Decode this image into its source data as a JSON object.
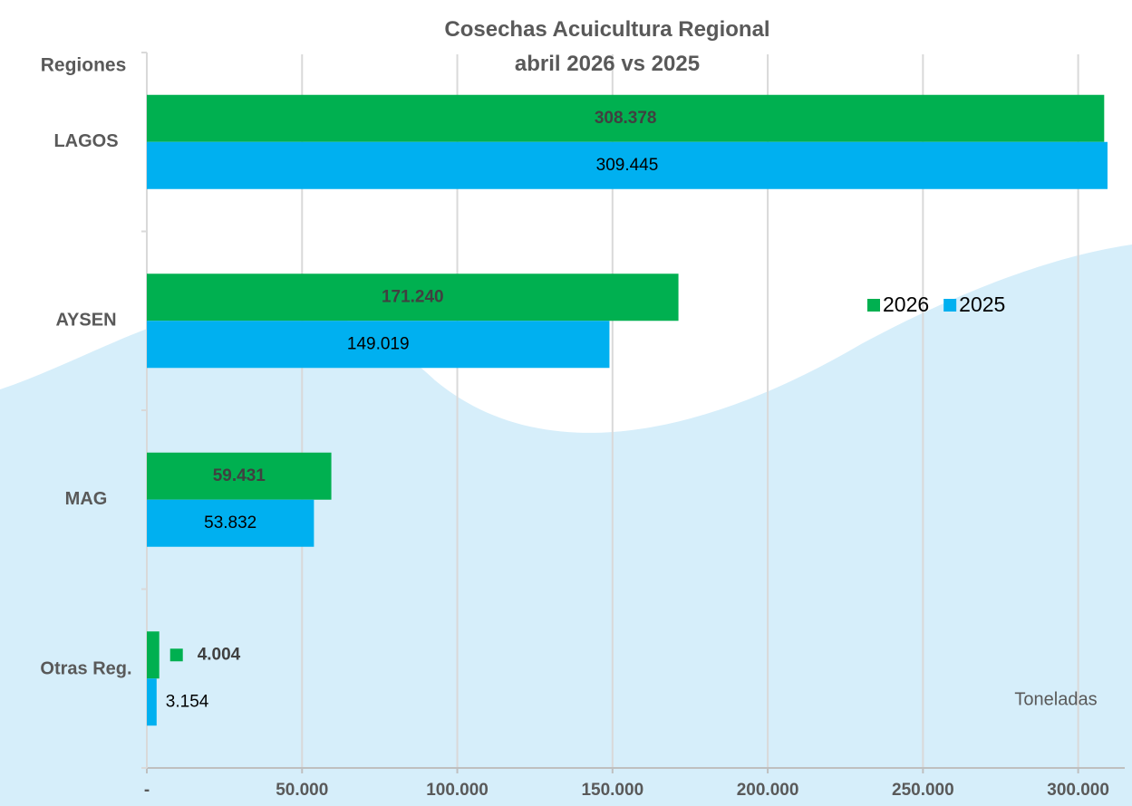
{
  "chart_data": {
    "type": "hbar",
    "title": "Cosechas Acuicultura Regional abril 2026 vs 2025",
    "y_axis_label": "Regiones",
    "annotation": "Toneladas",
    "categories": [
      "LAGOS",
      "AYSEN",
      "MAG",
      "Otras Reg."
    ],
    "series": [
      {
        "name": "2026",
        "color": "#00b050",
        "values": [
          308378,
          171240,
          59431,
          4004
        ],
        "value_labels": [
          "308.378",
          "171.240",
          "59.431",
          "4.004"
        ]
      },
      {
        "name": "2025",
        "color": "#00b0f0",
        "values": [
          309445,
          149019,
          53832,
          3154
        ],
        "value_labels": [
          "309.445",
          "149.019",
          "53.832",
          "3.154"
        ]
      }
    ],
    "xlim": [
      0,
      315000
    ],
    "xticks": [
      {
        "value": 0,
        "label": "-"
      },
      {
        "value": 50000,
        "label": "50.000"
      },
      {
        "value": 100000,
        "label": "100.000"
      },
      {
        "value": 150000,
        "label": "150.000"
      },
      {
        "value": 200000,
        "label": "200.000"
      },
      {
        "value": 250000,
        "label": "250.000"
      },
      {
        "value": 300000,
        "label": "300.000"
      }
    ],
    "grid": true,
    "legend": "right"
  }
}
